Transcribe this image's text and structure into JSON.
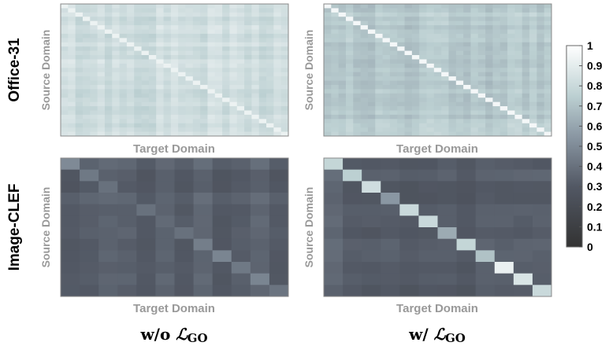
{
  "rows": [
    {
      "label": "Office-31",
      "ylabel": "Source Domain",
      "xlabel": "Target Domain"
    },
    {
      "label": "Image-CLEF",
      "ylabel": "Source Domain",
      "xlabel": "Target Domain"
    }
  ],
  "columns": [
    {
      "prefix": "w/o ",
      "loss": "ℒ",
      "sub": "GO"
    },
    {
      "prefix": "w/ ",
      "loss": "ℒ",
      "sub": "GO"
    }
  ],
  "colorbar": {
    "ticks": [
      "1",
      "0.9",
      "0.8",
      "0.7",
      "0.6",
      "0.5",
      "0.4",
      "0.3",
      "0.2",
      "0.1",
      "0"
    ],
    "range": [
      0,
      1
    ],
    "colors": [
      "#333333",
      "#525864",
      "#8a97a3",
      "#bcd0d2",
      "#ffffff"
    ]
  },
  "chart_data": [
    {
      "type": "heatmap",
      "row": "Office-31",
      "column": "w/o",
      "size": 31,
      "diagonal": 0.93,
      "off_diagonal": 0.82,
      "xlabel": "Target Domain",
      "ylabel": "Source Domain",
      "zlim": [
        0,
        1
      ]
    },
    {
      "type": "heatmap",
      "row": "Office-31",
      "column": "w/",
      "size": 31,
      "diagonal": 0.96,
      "off_diagonal": 0.72,
      "xlabel": "Target Domain",
      "ylabel": "Source Domain",
      "zlim": [
        0,
        1
      ]
    },
    {
      "type": "heatmap",
      "row": "Image-CLEF",
      "column": "w/o",
      "size": 12,
      "diagonal": [
        0.5,
        0.43,
        0.4,
        0.36,
        0.4,
        0.37,
        0.4,
        0.45,
        0.48,
        0.43,
        0.48,
        0.41
      ],
      "off_diagonal": 0.33,
      "xlabel": "Target Domain",
      "ylabel": "Source Domain",
      "zlim": [
        0,
        1
      ]
    },
    {
      "type": "heatmap",
      "row": "Image-CLEF",
      "column": "w/",
      "size": 12,
      "diagonal": [
        0.78,
        0.75,
        0.82,
        0.55,
        0.8,
        0.8,
        0.62,
        0.78,
        0.7,
        0.92,
        0.86,
        0.8
      ],
      "off_diagonal": 0.33,
      "xlabel": "Target Domain",
      "ylabel": "Source Domain",
      "zlim": [
        0,
        1
      ]
    }
  ]
}
